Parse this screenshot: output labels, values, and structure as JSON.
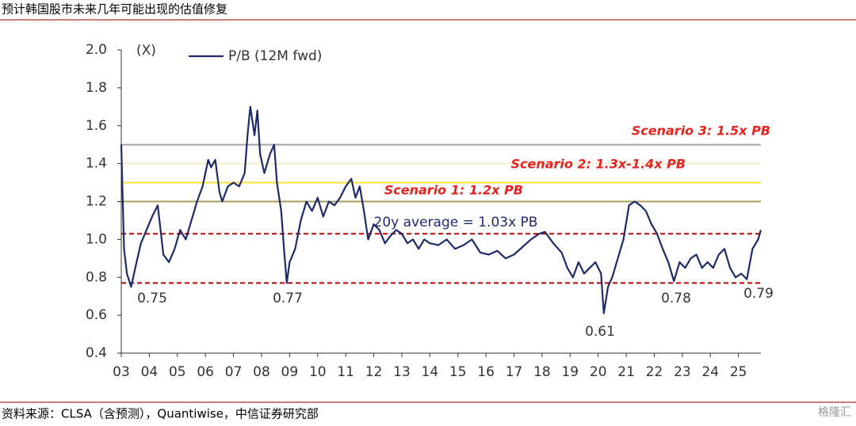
{
  "chart_data": {
    "type": "line",
    "title": "预计韩国股市未来几年可能出现的估值修复",
    "source": "资料来源：CLSA（含预测），Quantiwise，中信证券研究部",
    "watermark": "格隆汇",
    "y_unit": "(X)",
    "x": [
      3.0,
      3.1,
      3.2,
      3.35,
      3.5,
      3.7,
      3.9,
      4.1,
      4.3,
      4.4,
      4.5,
      4.7,
      4.9,
      5.1,
      5.3,
      5.5,
      5.7,
      5.9,
      6.1,
      6.2,
      6.35,
      6.5,
      6.6,
      6.8,
      7.0,
      7.2,
      7.4,
      7.5,
      7.6,
      7.75,
      7.85,
      7.95,
      8.1,
      8.3,
      8.45,
      8.55,
      8.7,
      8.8,
      8.9,
      9.0,
      9.2,
      9.4,
      9.6,
      9.8,
      10.0,
      10.2,
      10.4,
      10.6,
      10.8,
      11.0,
      11.2,
      11.35,
      11.5,
      11.65,
      11.8,
      12.0,
      12.2,
      12.4,
      12.6,
      12.8,
      13.0,
      13.2,
      13.4,
      13.6,
      13.8,
      14.0,
      14.3,
      14.6,
      14.9,
      15.2,
      15.5,
      15.8,
      16.1,
      16.4,
      16.7,
      17.0,
      17.3,
      17.6,
      17.9,
      18.1,
      18.4,
      18.7,
      18.9,
      19.1,
      19.3,
      19.5,
      19.7,
      19.9,
      20.1,
      20.2,
      20.35,
      20.5,
      20.7,
      20.9,
      21.1,
      21.3,
      21.5,
      21.7,
      21.9,
      22.1,
      22.3,
      22.5,
      22.7,
      22.9,
      23.1,
      23.3,
      23.5,
      23.7,
      23.9,
      24.1,
      24.3,
      24.5,
      24.7,
      24.9,
      25.1,
      25.3,
      25.5,
      25.7,
      25.8
    ],
    "series": [
      {
        "name": "P/B (12M fwd)",
        "color": "#1f2a6b",
        "values": [
          1.5,
          0.95,
          0.82,
          0.75,
          0.85,
          0.98,
          1.05,
          1.12,
          1.18,
          1.05,
          0.92,
          0.88,
          0.95,
          1.05,
          1.0,
          1.1,
          1.2,
          1.28,
          1.42,
          1.38,
          1.42,
          1.25,
          1.2,
          1.28,
          1.3,
          1.28,
          1.35,
          1.55,
          1.7,
          1.55,
          1.68,
          1.45,
          1.35,
          1.45,
          1.5,
          1.3,
          1.15,
          0.95,
          0.77,
          0.88,
          0.95,
          1.1,
          1.2,
          1.15,
          1.22,
          1.12,
          1.2,
          1.18,
          1.22,
          1.28,
          1.32,
          1.22,
          1.28,
          1.15,
          1.0,
          1.08,
          1.05,
          0.98,
          1.02,
          1.05,
          1.03,
          0.98,
          1.0,
          0.95,
          1.0,
          0.98,
          0.97,
          1.0,
          0.95,
          0.97,
          1.0,
          0.93,
          0.92,
          0.94,
          0.9,
          0.92,
          0.96,
          1.0,
          1.03,
          1.04,
          0.98,
          0.93,
          0.85,
          0.8,
          0.88,
          0.82,
          0.85,
          0.88,
          0.82,
          0.61,
          0.75,
          0.8,
          0.9,
          1.0,
          1.18,
          1.2,
          1.18,
          1.15,
          1.08,
          1.03,
          0.95,
          0.88,
          0.78,
          0.88,
          0.85,
          0.9,
          0.92,
          0.85,
          0.88,
          0.85,
          0.92,
          0.95,
          0.85,
          0.8,
          0.82,
          0.79,
          0.95,
          1.0,
          1.05
        ]
      }
    ],
    "reference_lines": [
      {
        "value": 1.5,
        "color": "#a6a6a6",
        "dash": false
      },
      {
        "value": 1.4,
        "color": "#f3efc7",
        "dash": false
      },
      {
        "value": 1.3,
        "color": "#f2e33a",
        "dash": false
      },
      {
        "value": 1.2,
        "color": "#a59d5e",
        "dash": false
      },
      {
        "value": 1.03,
        "color": "#c00000",
        "dash": true
      },
      {
        "value": 0.77,
        "color": "#c00000",
        "dash": true
      }
    ],
    "annotations": [
      "Scenario 3: 1.5x PB",
      "Scenario 2: 1.3x-1.4x PB",
      "Scenario 1: 1.2x PB",
      "20y average = 1.03x PB",
      "0.75",
      "0.77",
      "0.61",
      "0.78",
      "0.79"
    ],
    "xlim": [
      3,
      25.8
    ],
    "ylim": [
      0.4,
      2.0
    ],
    "xticks": [
      {
        "value": 3,
        "label": "03"
      },
      {
        "value": 4,
        "label": "04"
      },
      {
        "value": 5,
        "label": "05"
      },
      {
        "value": 6,
        "label": "06"
      },
      {
        "value": 7,
        "label": "07"
      },
      {
        "value": 8,
        "label": "08"
      },
      {
        "value": 9,
        "label": "09"
      },
      10,
      11,
      12,
      13,
      14,
      15,
      16,
      17,
      18,
      19,
      20,
      21,
      22,
      23,
      24,
      25
    ],
    "yticks": [
      {
        "value": 0.4,
        "label": "0.4"
      },
      {
        "value": 0.6,
        "label": "0.6"
      },
      {
        "value": 0.8,
        "label": "0.8"
      },
      {
        "value": 1.0,
        "label": "1.0"
      },
      {
        "value": 1.2,
        "label": "1.2"
      },
      {
        "value": 1.4,
        "label": "1.4"
      },
      {
        "value": 1.6,
        "label": "1.6"
      },
      {
        "value": 1.8,
        "label": "1.8"
      },
      {
        "value": 2.0,
        "label": "2.0"
      }
    ]
  }
}
